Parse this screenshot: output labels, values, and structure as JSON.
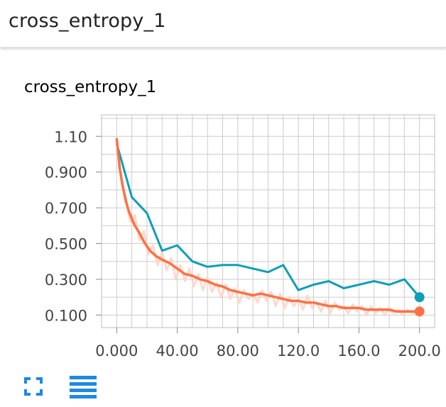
{
  "header": {
    "title": "cross_entropy_1"
  },
  "card": {
    "title": "cross_entropy_1"
  },
  "toolbar": {
    "expand_icon": "fullscreen-icon",
    "data_icon": "menu-lines-icon",
    "accent": "#1e88e5"
  },
  "colors": {
    "train": "#ff7043",
    "train_raw": "#ffcfbf",
    "eval": "#0c9fb8",
    "grid": "#cccccc"
  },
  "chart_data": {
    "type": "line",
    "title": "cross_entropy_1",
    "xlabel": "",
    "ylabel": "",
    "xlim": [
      -10,
      210
    ],
    "ylim": [
      0.03,
      1.22
    ],
    "x_ticks": [
      "0.000",
      "40.00",
      "80.00",
      "120.0",
      "160.0",
      "200.0"
    ],
    "x_tick_values": [
      0,
      40,
      80,
      120,
      160,
      200
    ],
    "y_ticks": [
      "1.10",
      "0.900",
      "0.700",
      "0.500",
      "0.300",
      "0.100"
    ],
    "y_tick_values": [
      1.1,
      0.9,
      0.7,
      0.5,
      0.3,
      0.1
    ],
    "grid": true,
    "series": [
      {
        "id": "train",
        "x": [
          0,
          2,
          4,
          6,
          8,
          10,
          12,
          15,
          18,
          22,
          26,
          30,
          35,
          40,
          45,
          50,
          55,
          60,
          65,
          70,
          75,
          80,
          85,
          90,
          95,
          100,
          105,
          110,
          115,
          120,
          125,
          130,
          135,
          140,
          145,
          150,
          155,
          160,
          165,
          170,
          175,
          180,
          185,
          190,
          195,
          200
        ],
        "values": [
          1.09,
          0.92,
          0.82,
          0.74,
          0.68,
          0.64,
          0.6,
          0.56,
          0.51,
          0.46,
          0.43,
          0.41,
          0.39,
          0.36,
          0.33,
          0.32,
          0.3,
          0.29,
          0.27,
          0.26,
          0.24,
          0.23,
          0.22,
          0.21,
          0.22,
          0.21,
          0.2,
          0.19,
          0.18,
          0.18,
          0.17,
          0.17,
          0.16,
          0.15,
          0.15,
          0.14,
          0.14,
          0.14,
          0.13,
          0.13,
          0.13,
          0.13,
          0.12,
          0.12,
          0.12,
          0.12
        ]
      },
      {
        "id": "train_raw",
        "x": [
          0,
          3,
          6,
          9,
          12,
          15,
          18,
          21,
          24,
          27,
          30,
          33,
          36,
          39,
          42,
          45,
          48,
          51,
          54,
          57,
          60,
          63,
          66,
          69,
          72,
          75,
          78,
          81,
          84,
          87,
          90,
          93,
          96,
          99,
          102,
          105,
          108,
          111,
          114,
          117,
          120,
          123,
          126,
          129,
          132,
          135,
          138,
          141,
          144,
          147,
          150,
          153,
          156,
          159,
          162,
          165,
          168,
          171,
          174,
          177,
          180,
          183,
          186,
          189,
          192,
          195,
          198,
          200
        ],
        "values": [
          1.09,
          0.86,
          0.76,
          0.62,
          0.66,
          0.52,
          0.57,
          0.44,
          0.49,
          0.38,
          0.45,
          0.35,
          0.42,
          0.3,
          0.38,
          0.29,
          0.36,
          0.26,
          0.33,
          0.24,
          0.31,
          0.23,
          0.28,
          0.2,
          0.27,
          0.19,
          0.25,
          0.17,
          0.24,
          0.19,
          0.22,
          0.17,
          0.24,
          0.18,
          0.23,
          0.15,
          0.22,
          0.14,
          0.2,
          0.15,
          0.19,
          0.13,
          0.21,
          0.14,
          0.17,
          0.12,
          0.18,
          0.11,
          0.17,
          0.13,
          0.15,
          0.11,
          0.16,
          0.12,
          0.15,
          0.1,
          0.15,
          0.11,
          0.14,
          0.1,
          0.14,
          0.11,
          0.13,
          0.1,
          0.13,
          0.11,
          0.12,
          0.11
        ]
      },
      {
        "id": "eval",
        "x": [
          0,
          10,
          20,
          30,
          40,
          50,
          60,
          70,
          80,
          90,
          100,
          110,
          120,
          130,
          140,
          150,
          160,
          170,
          180,
          190,
          200
        ],
        "values": [
          1.06,
          0.76,
          0.67,
          0.46,
          0.49,
          0.4,
          0.37,
          0.38,
          0.38,
          0.36,
          0.34,
          0.38,
          0.24,
          0.27,
          0.29,
          0.25,
          0.27,
          0.29,
          0.27,
          0.3,
          0.2
        ]
      }
    ]
  }
}
